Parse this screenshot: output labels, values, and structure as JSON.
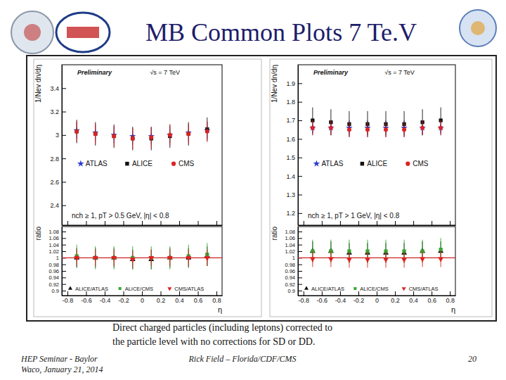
{
  "slide": {
    "title": "MB Common Plots 7 Te.V",
    "caption": [
      "Direct charged particles (including leptons) corrected to",
      "the particle level with no corrections for SD or DD."
    ],
    "footer_left": [
      "HEP Seminar - Baylor",
      "Waco, January 21, 2014"
    ],
    "footer_center": "Rick Field – Florida/CDF/CMS",
    "page": 20
  },
  "chart_data": [
    {
      "type": "scatter",
      "status": "Preliminary",
      "energy": "√s = 7 TeV",
      "selection": "nch ≥ 1, pT > 0.5 GeV, |η| < 0.8",
      "y_label": "1/Nev dn/dη",
      "x": [
        -0.7,
        -0.5,
        -0.3,
        -0.1,
        0.1,
        0.3,
        0.5,
        0.7
      ],
      "series": [
        {
          "name": "ATLAS",
          "color": "#2b3bd1",
          "marker": "star",
          "values": [
            3.04,
            3.02,
            3.0,
            2.99,
            2.99,
            3.0,
            3.02,
            3.04
          ],
          "errors": [
            0.07,
            0.07,
            0.07,
            0.07,
            0.07,
            0.07,
            0.07,
            0.07
          ]
        },
        {
          "name": "ALICE",
          "color": "#111111",
          "marker": "square",
          "values": [
            3.03,
            3.01,
            2.99,
            2.97,
            2.97,
            2.99,
            3.01,
            3.05
          ],
          "errors": [
            0.1,
            0.1,
            0.1,
            0.1,
            0.1,
            0.1,
            0.1,
            0.1
          ]
        },
        {
          "name": "CMS",
          "color": "#dd2222",
          "marker": "circle",
          "values": [
            3.03,
            3.01,
            2.99,
            2.97,
            2.98,
            3.0,
            3.01,
            3.03
          ],
          "errors": [
            0.09,
            0.09,
            0.09,
            0.09,
            0.09,
            0.09,
            0.09,
            0.09
          ]
        }
      ],
      "xlim": [
        -0.86,
        0.86
      ],
      "ylim": [
        2.23,
        3.6
      ],
      "xticks": [
        -0.8,
        -0.6,
        -0.4,
        -0.2,
        0,
        0.2,
        0.4,
        0.6,
        0.8
      ],
      "yticks": [
        2.4,
        2.6,
        2.8,
        3,
        3.2,
        3.4
      ],
      "tick_labels": "y",
      "legend": "center"
    },
    {
      "type": "scatter",
      "y_label": "ratio",
      "x_label": "η",
      "x": [
        -0.7,
        -0.5,
        -0.3,
        -0.1,
        0.1,
        0.3,
        0.5,
        0.7
      ],
      "series": [
        {
          "name": "ALICE/ATLAS",
          "color": "#111111",
          "marker": "triangle",
          "values": [
            1.0,
            1.0,
            1.0,
            0.995,
            0.995,
            1.0,
            1.0,
            1.005
          ],
          "errors": [
            0.03,
            0.03,
            0.03,
            0.03,
            0.03,
            0.03,
            0.03,
            0.03
          ]
        },
        {
          "name": "ALICE/CMS",
          "color": "#33aa33",
          "marker": "square",
          "values": [
            1.005,
            1.0,
            1.0,
            1.0,
            1.0,
            1.0,
            1.005,
            1.01
          ],
          "errors": [
            0.035,
            0.035,
            0.035,
            0.035,
            0.035,
            0.035,
            0.035,
            0.035
          ]
        },
        {
          "name": "CMS/ATLAS",
          "color": "#dd2222",
          "marker": "triangle-down",
          "values": [
            1.0,
            1.0,
            1.0,
            0.995,
            1.0,
            1.0,
            1.0,
            1.0
          ],
          "errors": [
            0.025,
            0.025,
            0.025,
            0.025,
            0.025,
            0.025,
            0.025,
            0.025
          ]
        }
      ],
      "reference": 1,
      "xlim": [
        -0.86,
        0.86
      ],
      "ylim": [
        0.885,
        1.095
      ],
      "xticks": [
        -0.8,
        -0.6,
        -0.4,
        -0.2,
        0,
        0.2,
        0.4,
        0.6,
        0.8
      ],
      "yticks": [
        0.9,
        0.92,
        0.94,
        0.96,
        0.98,
        1,
        1.02,
        1.04,
        1.06,
        1.08
      ],
      "legend": "bottom"
    },
    {
      "type": "scatter",
      "status": "Preliminary",
      "energy": "√s = 7 TeV",
      "selection": "nch ≥ 1, pT > 1 GeV, |η| < 0.8",
      "y_label": "1/Nev dn/dη",
      "x": [
        -0.7,
        -0.5,
        -0.3,
        -0.1,
        0.1,
        0.3,
        0.5,
        0.7
      ],
      "series": [
        {
          "name": "ATLAS",
          "color": "#2b3bd1",
          "marker": "star",
          "values": [
            1.66,
            1.66,
            1.66,
            1.66,
            1.66,
            1.66,
            1.66,
            1.66
          ],
          "errors": [
            0.04,
            0.04,
            0.04,
            0.04,
            0.04,
            0.04,
            0.04,
            0.04
          ]
        },
        {
          "name": "ALICE",
          "color": "#111111",
          "marker": "square",
          "values": [
            1.7,
            1.69,
            1.68,
            1.68,
            1.68,
            1.68,
            1.69,
            1.7
          ],
          "errors": [
            0.07,
            0.07,
            0.07,
            0.07,
            0.07,
            0.07,
            0.07,
            0.07
          ]
        },
        {
          "name": "CMS",
          "color": "#dd2222",
          "marker": "circle",
          "values": [
            1.66,
            1.66,
            1.65,
            1.65,
            1.65,
            1.65,
            1.66,
            1.66
          ],
          "errors": [
            0.04,
            0.04,
            0.04,
            0.04,
            0.04,
            0.04,
            0.04,
            0.04
          ]
        }
      ],
      "xlim": [
        -0.86,
        0.86
      ],
      "ylim": [
        1.135,
        2.0
      ],
      "xticks": [
        -0.8,
        -0.6,
        -0.4,
        -0.2,
        0,
        0.2,
        0.4,
        0.6,
        0.8
      ],
      "yticks": [
        1.2,
        1.3,
        1.4,
        1.5,
        1.6,
        1.7,
        1.8,
        1.9
      ],
      "tick_labels": "y",
      "legend": "center"
    },
    {
      "type": "scatter",
      "y_label": "ratio",
      "x_label": "η",
      "x": [
        -0.7,
        -0.5,
        -0.3,
        -0.1,
        0.1,
        0.3,
        0.5,
        0.7
      ],
      "series": [
        {
          "name": "ALICE/ATLAS",
          "color": "#111111",
          "marker": "triangle",
          "values": [
            1.02,
            1.02,
            1.015,
            1.015,
            1.015,
            1.015,
            1.02,
            1.02
          ],
          "errors": [
            0.03,
            0.03,
            0.03,
            0.03,
            0.03,
            0.03,
            0.03,
            0.03
          ]
        },
        {
          "name": "ALICE/CMS",
          "color": "#33aa33",
          "marker": "square",
          "values": [
            1.02,
            1.02,
            1.02,
            1.02,
            1.02,
            1.02,
            1.02,
            1.025
          ],
          "errors": [
            0.035,
            0.035,
            0.035,
            0.035,
            0.035,
            0.035,
            0.035,
            0.035
          ]
        },
        {
          "name": "CMS/ATLAS",
          "color": "#dd2222",
          "marker": "triangle-down",
          "values": [
            0.997,
            0.997,
            0.995,
            0.995,
            0.995,
            0.995,
            0.997,
            0.997
          ],
          "errors": [
            0.025,
            0.025,
            0.025,
            0.025,
            0.025,
            0.025,
            0.025,
            0.025
          ]
        }
      ],
      "reference": 1,
      "xlim": [
        -0.86,
        0.86
      ],
      "ylim": [
        0.885,
        1.095
      ],
      "xticks": [
        -0.8,
        -0.6,
        -0.4,
        -0.2,
        0,
        0.2,
        0.4,
        0.6,
        0.8
      ],
      "yticks": [
        0.9,
        0.92,
        0.94,
        0.96,
        0.98,
        1,
        1.02,
        1.04,
        1.06,
        1.08
      ],
      "legend": "bottom"
    }
  ]
}
